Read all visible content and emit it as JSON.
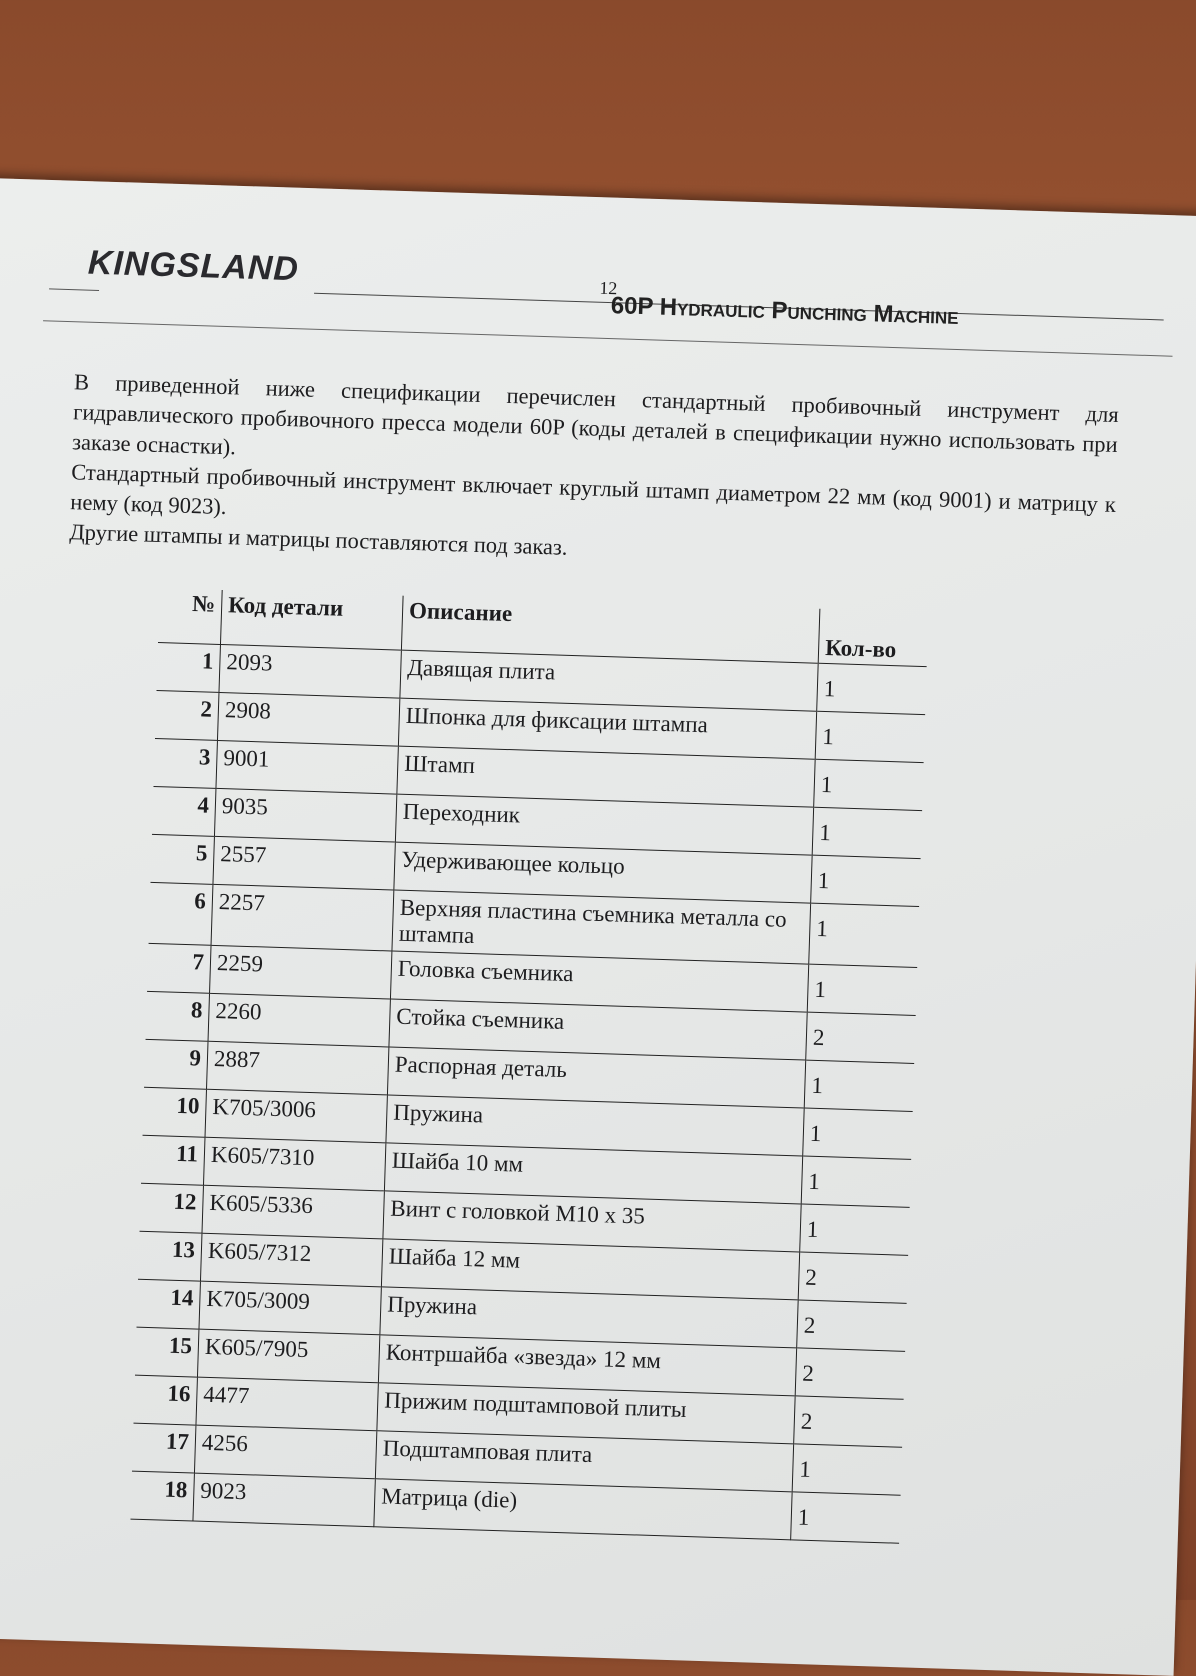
{
  "header": {
    "logo": "KINGSLAND",
    "page_number": "12",
    "title": "60P Hydraulic Punching Machine"
  },
  "intro": [
    "В приведенной ниже спецификации перечислен стандартный пробивочный инструмент для гидравлического пробивочного пресса модели 60P (коды деталей в спецификации нужно использовать при заказе оснастки).",
    "Стандартный пробивочный инструмент включает круглый штамп диаметром 22 мм (код 9001) и матрицу к нему (код 9023).",
    "Другие штампы и матрицы поставляются под заказ."
  ],
  "table": {
    "headers": [
      "№",
      "Код детали",
      "Описание",
      "Кол-во"
    ],
    "rows": [
      [
        "1",
        "2093",
        "Давящая плита",
        "1"
      ],
      [
        "2",
        "2908",
        "Шпонка для фиксации штампа",
        "1"
      ],
      [
        "3",
        "9001",
        "Штамп",
        "1"
      ],
      [
        "4",
        "9035",
        "Переходник",
        "1"
      ],
      [
        "5",
        "2557",
        "Удерживающее кольцо",
        "1"
      ],
      [
        "6",
        "2257",
        "Верхняя пластина съемника металла со штампа",
        "1"
      ],
      [
        "7",
        "2259",
        "Головка съемника",
        "1"
      ],
      [
        "8",
        "2260",
        "Стойка съемника",
        "2"
      ],
      [
        "9",
        "2887",
        "Распорная деталь",
        "1"
      ],
      [
        "10",
        "K705/3006",
        "Пружина",
        "1"
      ],
      [
        "11",
        "K605/7310",
        "Шайба 10 мм",
        "1"
      ],
      [
        "12",
        "K605/5336",
        "Винт с головкой M10 x 35",
        "1"
      ],
      [
        "13",
        "K605/7312",
        "Шайба 12 мм",
        "2"
      ],
      [
        "14",
        "K705/3009",
        "Пружина",
        "2"
      ],
      [
        "15",
        "K605/7905",
        "Контршайба «звезда» 12 мм",
        "2"
      ],
      [
        "16",
        "4477",
        "Прижим подштамповой плиты",
        "2"
      ],
      [
        "17",
        "4256",
        "Подштамповая плита",
        "1"
      ],
      [
        "18",
        "9023",
        "Матрица (die)",
        "1"
      ]
    ]
  }
}
